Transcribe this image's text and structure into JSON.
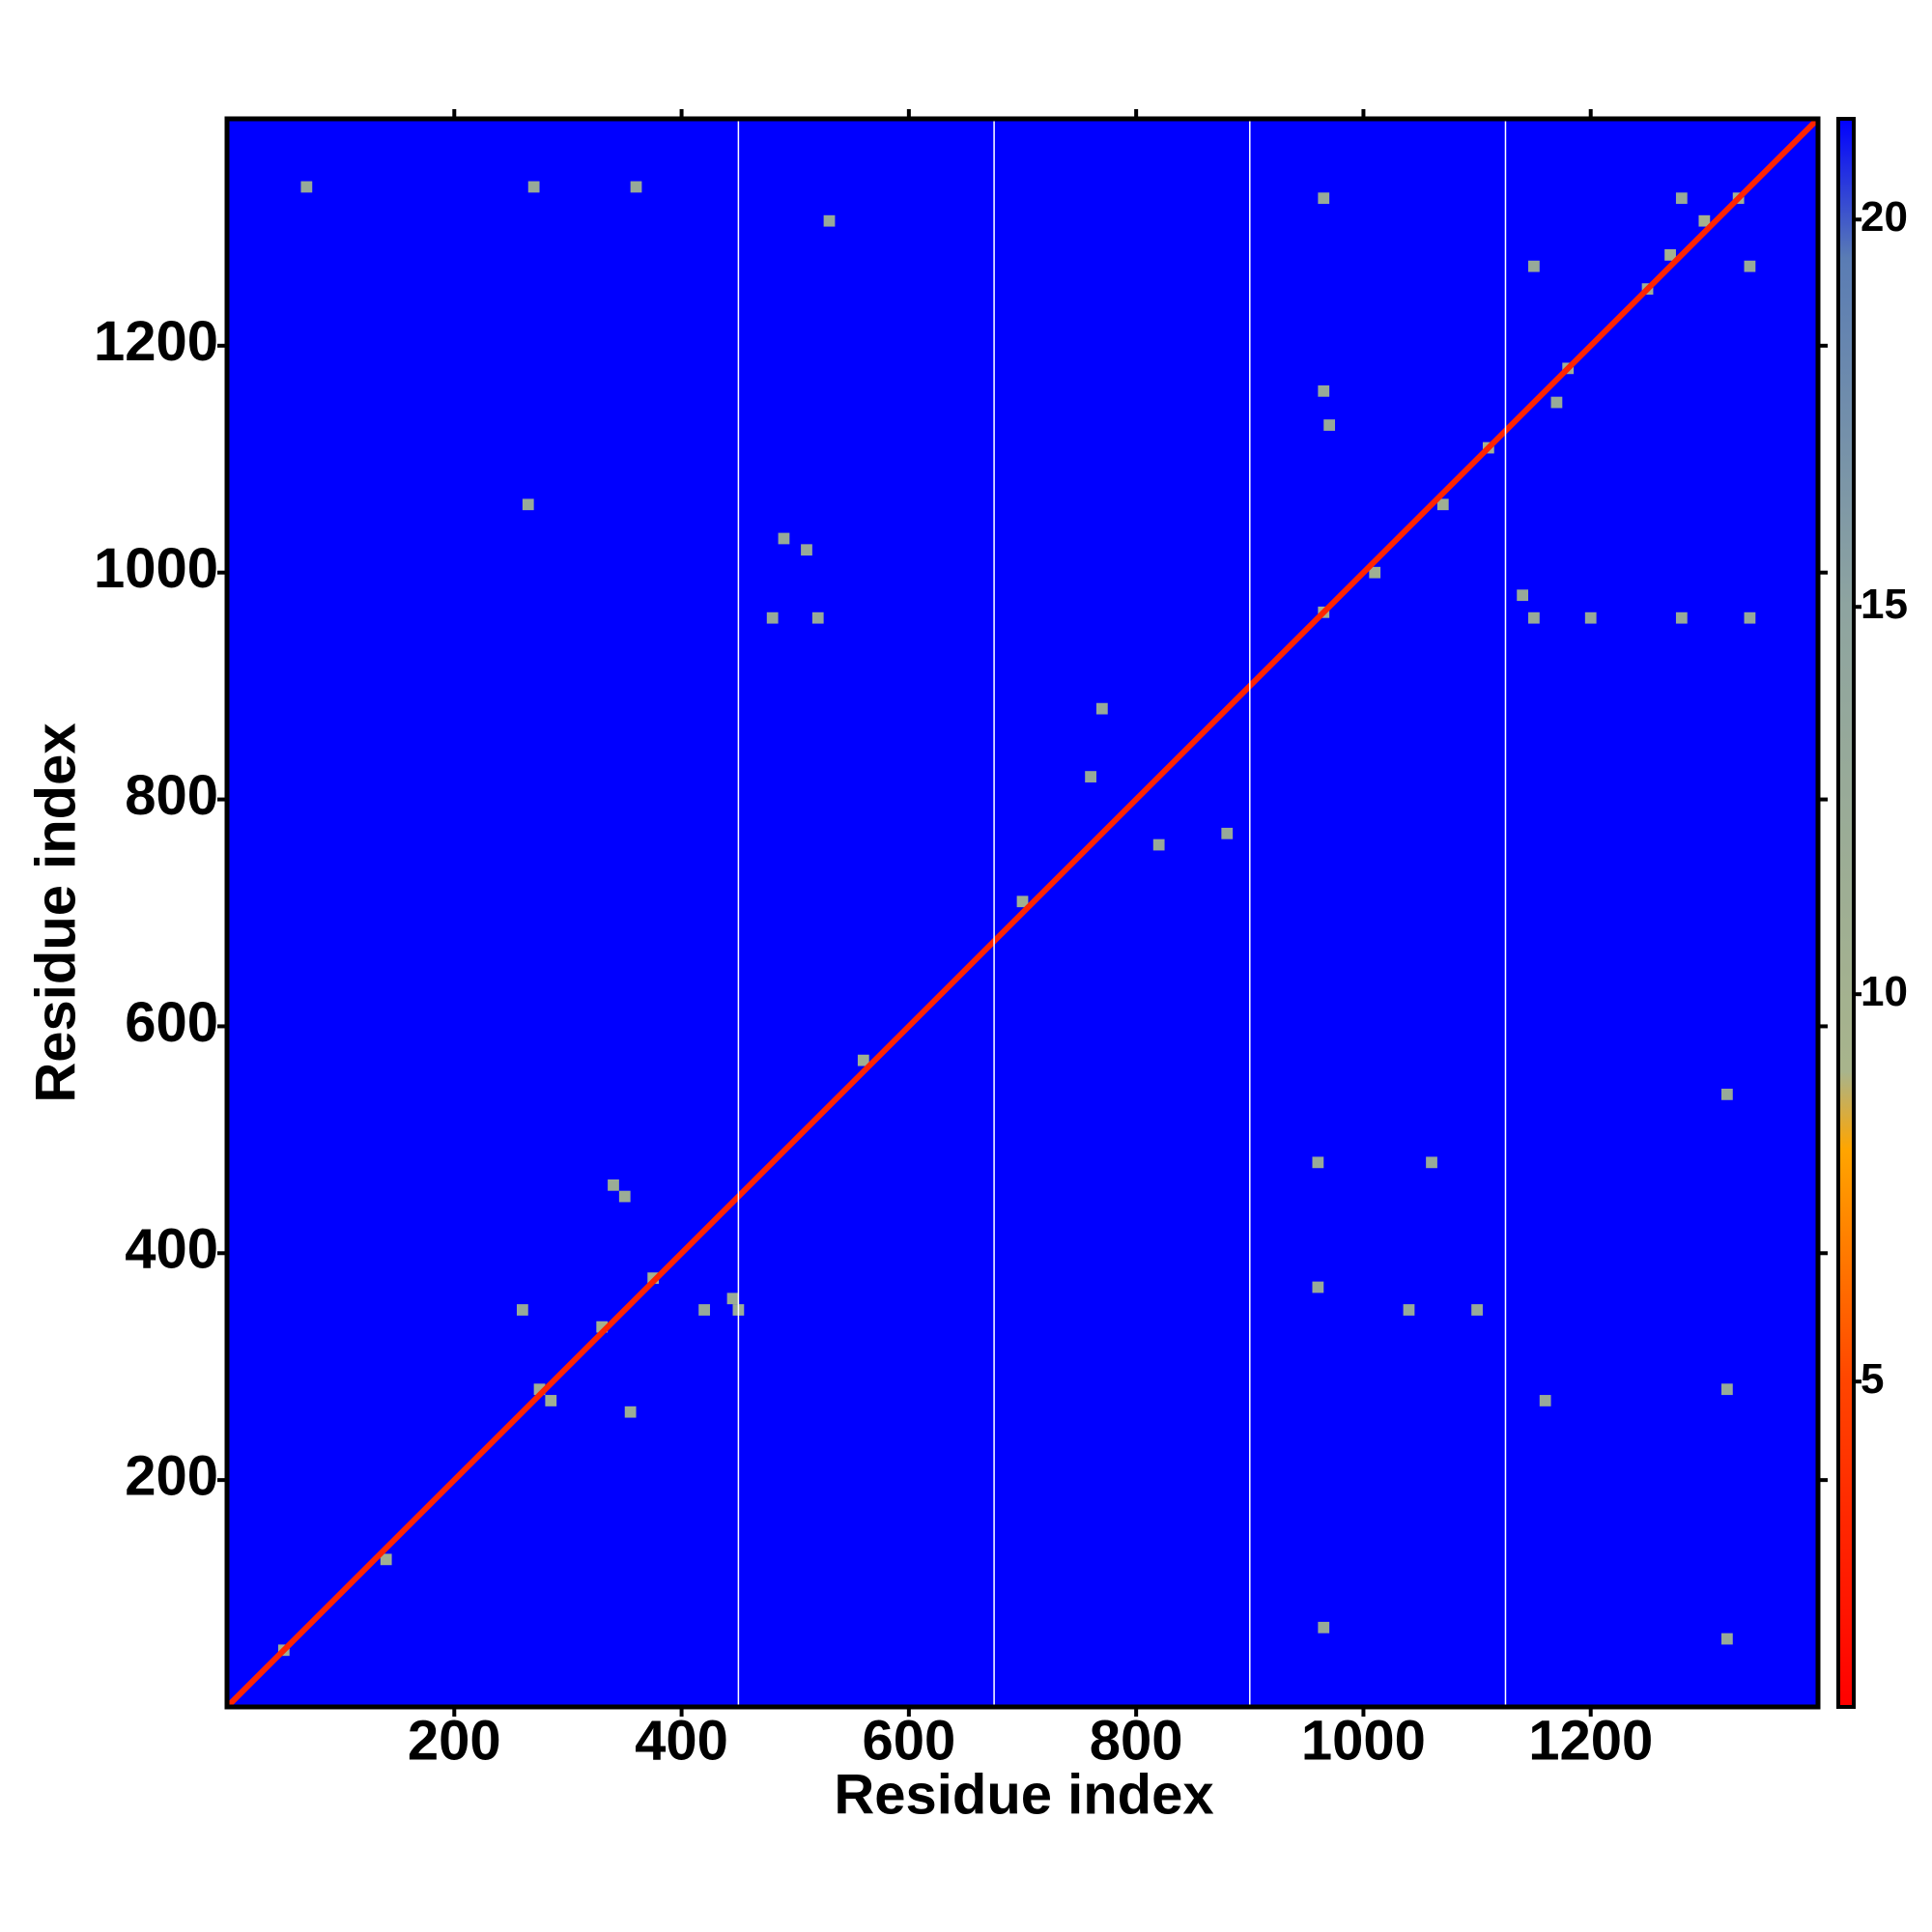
{
  "chart_data": {
    "type": "heatmap",
    "xlabel": "Residue index",
    "ylabel": "Residue index",
    "xlim": [
      0,
      1400
    ],
    "ylim": [
      0,
      1400
    ],
    "xticks": [
      200,
      400,
      600,
      800,
      1000,
      1200
    ],
    "yticks": [
      200,
      400,
      600,
      800,
      1000,
      1200
    ],
    "clim": [
      0.8,
      21.3
    ],
    "cticks": [
      5,
      10,
      15,
      20
    ],
    "colormap": [
      [
        0.8,
        "#ff0000"
      ],
      [
        5,
        "#ff4500"
      ],
      [
        8,
        "#ffa500"
      ],
      [
        9,
        "#a8b48c"
      ],
      [
        15,
        "#8ea4a0"
      ],
      [
        19.5,
        "#5a7cb4"
      ],
      [
        21.3,
        "#0000ff"
      ]
    ],
    "background_value": 21.3,
    "diagonal_value": 3,
    "boundaries": [
      450,
      675,
      900,
      1125
    ],
    "boundary_color": "#ffffff",
    "cells": [
      [
        275,
        280,
        11
      ],
      [
        285,
        270,
        11
      ],
      [
        330,
        335,
        10
      ],
      [
        375,
        378,
        10
      ],
      [
        340,
        460,
        12
      ],
      [
        350,
        450,
        12
      ],
      [
        355,
        260,
        12
      ],
      [
        450,
        350,
        12
      ],
      [
        445,
        360,
        12
      ],
      [
        260,
        350,
        13
      ],
      [
        420,
        350,
        13
      ],
      [
        490,
        1030,
        13
      ],
      [
        510,
        1020,
        13
      ],
      [
        480,
        960,
        13
      ],
      [
        520,
        960,
        13
      ],
      [
        965,
        965,
        10
      ],
      [
        970,
        1130,
        13
      ],
      [
        965,
        1160,
        13
      ],
      [
        965,
        1330,
        13
      ],
      [
        960,
        480,
        13
      ],
      [
        960,
        370,
        13
      ],
      [
        965,
        70,
        13
      ],
      [
        1110,
        1110,
        10
      ],
      [
        1180,
        1180,
        11
      ],
      [
        1270,
        1280,
        10
      ],
      [
        1300,
        1310,
        10
      ],
      [
        1330,
        1330,
        10
      ],
      [
        1200,
        960,
        13
      ],
      [
        1150,
        960,
        13
      ],
      [
        1280,
        960,
        13
      ],
      [
        1340,
        960,
        13
      ],
      [
        1040,
        350,
        13
      ],
      [
        1060,
        480,
        13
      ],
      [
        1100,
        350,
        13
      ],
      [
        1140,
        980,
        13
      ],
      [
        1160,
        270,
        13
      ],
      [
        1280,
        1330,
        13
      ],
      [
        1340,
        1270,
        13
      ],
      [
        820,
        760,
        13
      ],
      [
        760,
        820,
        13
      ],
      [
        770,
        880,
        13
      ],
      [
        880,
        770,
        13
      ],
      [
        265,
        1060,
        13
      ],
      [
        70,
        1340,
        13
      ],
      [
        270,
        1340,
        13
      ],
      [
        360,
        1340,
        13
      ],
      [
        530,
        1310,
        13
      ],
      [
        1150,
        1270,
        13
      ],
      [
        1170,
        1150,
        13
      ],
      [
        50,
        50,
        11
      ],
      [
        140,
        130,
        11
      ],
      [
        560,
        570,
        11
      ],
      [
        700,
        710,
        11
      ],
      [
        1010,
        1000,
        11
      ],
      [
        1070,
        1060,
        11
      ],
      [
        1250,
        1250,
        11
      ],
      [
        1320,
        280,
        13
      ],
      [
        1320,
        540,
        13
      ],
      [
        1320,
        60,
        13
      ]
    ],
    "cell_size": 10
  }
}
